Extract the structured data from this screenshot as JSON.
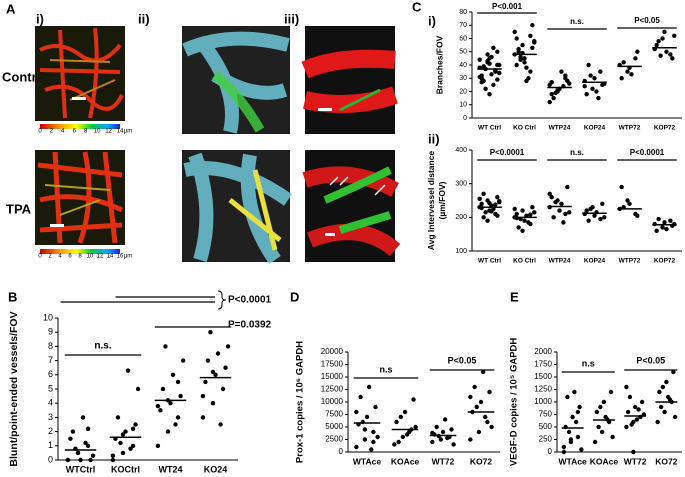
{
  "panel_a": {
    "label": "A",
    "columns": [
      "i)",
      "ii)",
      "iii)"
    ],
    "rows": [
      "Control",
      "TPA"
    ],
    "colorbar_labels": [
      [
        "0",
        "2",
        "4",
        "6",
        "8",
        "10",
        "12",
        "14",
        "µm"
      ],
      [
        "0",
        "2",
        "4",
        "6",
        "8",
        "10",
        "12",
        "14",
        "16",
        "µm"
      ]
    ]
  },
  "panel_c": {
    "label": "C"
  },
  "chart_data": [
    {
      "type": "dotplot",
      "panel_label": "i)",
      "ylabel": [
        "Branches/FOV"
      ],
      "categories": [
        "WT Ctrl",
        "KO Ctrl",
        "WTP24",
        "KOP24",
        "WTP72",
        "KOP72"
      ],
      "points": [
        [
          38,
          42,
          35,
          30,
          45,
          50,
          28,
          33,
          40,
          37,
          25,
          44,
          48,
          36,
          32,
          41,
          29,
          39,
          46,
          34,
          22,
          53,
          31,
          43,
          36,
          27,
          18,
          40
        ],
        [
          48,
          55,
          62,
          40,
          45,
          70,
          52,
          38,
          57,
          44,
          30,
          65,
          49,
          35,
          60,
          42,
          53,
          50,
          28,
          58,
          46
        ],
        [
          25,
          20,
          30,
          18,
          22,
          28,
          15,
          35,
          26,
          19,
          24,
          12,
          21,
          32,
          27
        ],
        [
          28,
          22,
          35,
          18,
          30,
          25,
          40,
          20,
          26,
          32,
          15,
          24
        ],
        [
          40,
          35,
          45,
          30,
          38,
          50,
          42,
          33
        ],
        [
          52,
          60,
          48,
          55,
          65,
          45,
          58,
          50,
          62,
          47
        ]
      ],
      "means": [
        37,
        48,
        23,
        27,
        39,
        53
      ],
      "ylim": [
        0,
        80
      ],
      "yticks": [
        0,
        10,
        20,
        30,
        40,
        50,
        60,
        70,
        80
      ],
      "annotations": [
        "P<0.001",
        "n.s.",
        "P<0.05"
      ]
    },
    {
      "type": "dotplot",
      "panel_label": "ii)",
      "ylabel": [
        "Avg Intervessel distance",
        "(µm/FOV)"
      ],
      "categories": [
        "WT Ctrl",
        "KO Ctrl",
        "WTP24",
        "KOP24",
        "WTP72",
        "KOP72"
      ],
      "points": [
        [
          230,
          250,
          210,
          240,
          220,
          260,
          200,
          235,
          245,
          215,
          225,
          255,
          190,
          238,
          228,
          242,
          205,
          270,
          218,
          248
        ],
        [
          200,
          220,
          180,
          210,
          190,
          230,
          170,
          205,
          215,
          195,
          185,
          225,
          160,
          208,
          198
        ],
        [
          230,
          250,
          210,
          260,
          220,
          290,
          200,
          240,
          215,
          245,
          185,
          270
        ],
        [
          210,
          230,
          195,
          220,
          205,
          240,
          190,
          215,
          200,
          225
        ],
        [
          225,
          250,
          210,
          290,
          240,
          205,
          230
        ],
        [
          180,
          170,
          190,
          160,
          185,
          175,
          195,
          165,
          180
        ]
      ],
      "means": [
        230,
        200,
        232,
        212,
        225,
        178
      ],
      "ylim": [
        100,
        400
      ],
      "yticks": [
        100,
        200,
        300,
        400
      ],
      "annotations": [
        "P<0.0001",
        "n.s.",
        "P<0.0001"
      ]
    },
    {
      "type": "dotplot",
      "panel_label": "B",
      "ylabel": [
        "Blunt/point-ended vessels/FOV"
      ],
      "categories": [
        "WTCtrl",
        "KOCtrl",
        "WT24",
        "KO24"
      ],
      "points": [
        [
          0,
          0.5,
          1,
          1.5,
          0,
          0,
          2,
          3,
          0.3,
          0.8,
          1.2,
          0,
          0.5,
          2.2
        ],
        [
          0,
          0.5,
          1,
          1.5,
          2,
          2.5,
          3,
          6.3,
          5,
          1.2,
          0.8,
          0.3,
          1.8,
          2.2
        ],
        [
          1,
          2,
          3,
          3.5,
          4,
          4.5,
          5,
          6,
          7,
          8,
          2.5,
          3.8,
          4.2,
          5.5
        ],
        [
          3,
          4,
          5,
          5.5,
          6,
          6.5,
          7,
          7.5,
          8,
          9,
          2.5,
          4.5,
          6.2
        ]
      ],
      "means": [
        0.7,
        1.6,
        4.2,
        5.8
      ],
      "ylim": [
        0,
        10
      ],
      "yticks": [
        0,
        1,
        2,
        3,
        4,
        5,
        6,
        7,
        8,
        9,
        10
      ],
      "annotations": [
        "n.s.",
        "P<0.0001",
        "P=0.0392"
      ]
    },
    {
      "type": "dotplot",
      "panel_label": "D",
      "ylabel": [
        "Prox-1 copies / 10⁶ GAPDH"
      ],
      "categories": [
        "WTAce",
        "KOAce",
        "WT72",
        "KO72"
      ],
      "points": [
        [
          1000,
          2500,
          4000,
          5500,
          7000,
          9000,
          11000,
          13000,
          3000,
          6000,
          500,
          8000,
          4500,
          2000
        ],
        [
          1500,
          3000,
          4500,
          6000,
          8000,
          10500,
          2000,
          3500,
          5000,
          7000,
          4000
        ],
        [
          2000,
          2500,
          3000,
          3500,
          4000,
          4500,
          5000,
          6500,
          1500,
          3200,
          2800,
          3800
        ],
        [
          2500,
          4000,
          6000,
          8000,
          10000,
          12000,
          13000,
          16000,
          5000,
          9000,
          7000,
          11000
        ]
      ],
      "means": [
        5800,
        4500,
        3300,
        8000
      ],
      "ylim": [
        0,
        20000
      ],
      "yticks": [
        0,
        2500,
        5000,
        7500,
        10000,
        12500,
        15000,
        17500,
        20000
      ],
      "annotations": [
        "n.s",
        "P<0.05"
      ]
    },
    {
      "type": "dotplot",
      "panel_label": "E",
      "ylabel": [
        "VEGF-D copies / 10⁵ GAPDH"
      ],
      "categories": [
        "WTAce",
        "KOAce",
        "WT72",
        "KO72"
      ],
      "points": [
        [
          100,
          200,
          300,
          500,
          700,
          900,
          1100,
          1200,
          50,
          400,
          600,
          0,
          250,
          800
        ],
        [
          200,
          400,
          600,
          800,
          1000,
          1200,
          500,
          700,
          300,
          900,
          650
        ],
        [
          500,
          600,
          700,
          800,
          900,
          1000,
          1100,
          650,
          750,
          550,
          850,
          1300,
          0
        ],
        [
          600,
          800,
          1000,
          1200,
          1400,
          1600,
          900,
          1100,
          700,
          1300,
          1050
        ]
      ],
      "means": [
        480,
        640,
        720,
        1000
      ],
      "ylim": [
        0,
        2000
      ],
      "yticks": [
        0,
        250,
        500,
        750,
        1000,
        1250,
        1500,
        1750,
        2000
      ],
      "annotations": [
        "n.s",
        "P<0.05"
      ]
    }
  ]
}
